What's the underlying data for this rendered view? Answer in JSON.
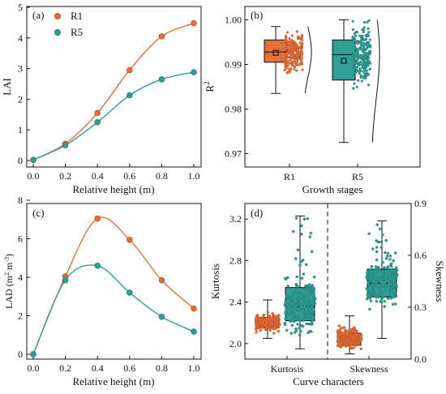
{
  "colors": {
    "r1": "#e2703a",
    "r5": "#2f9e96",
    "r1_dark": "#b04a22",
    "r5_dark": "#1f6e68",
    "axis": "#111111"
  },
  "chart_data": [
    {
      "panel": "(a)",
      "type": "line",
      "xlabel": "Relative height (m)",
      "ylabel": "LAI",
      "xlim": [
        0,
        1.0
      ],
      "ylim": [
        0,
        5
      ],
      "xticks": [
        "0.0",
        "0.2",
        "0.4",
        "0.6",
        "0.8",
        "1.0"
      ],
      "yticks": [
        "0",
        "1",
        "2",
        "3",
        "4",
        "5"
      ],
      "legend": [
        "R1",
        "R5"
      ],
      "series": [
        {
          "name": "R1",
          "x": [
            0,
            0.2,
            0.4,
            0.6,
            0.8,
            1.0
          ],
          "y": [
            0.02,
            0.55,
            1.55,
            2.95,
            4.05,
            4.48
          ]
        },
        {
          "name": "R5",
          "x": [
            0,
            0.2,
            0.4,
            0.6,
            0.8,
            1.0
          ],
          "y": [
            0.02,
            0.5,
            1.25,
            2.13,
            2.65,
            2.88
          ]
        }
      ]
    },
    {
      "panel": "(b)",
      "type": "box",
      "xlabel": "Growth stages",
      "ylabel": "R²",
      "categories": [
        "R1",
        "R5"
      ],
      "ylim": [
        0.967,
        1.003
      ],
      "yticks": [
        "0.97",
        "0.98",
        "0.99",
        "1.00"
      ],
      "boxes": [
        {
          "name": "R1",
          "whisker_low": 0.9835,
          "q1": 0.9905,
          "median": 0.9928,
          "q3": 0.9955,
          "whisker_high": 0.9985,
          "mean": 0.9926
        },
        {
          "name": "R5",
          "whisker_low": 0.9725,
          "q1": 0.9865,
          "median": 0.9922,
          "q3": 0.9955,
          "whisker_high": 1.0,
          "mean": 0.9908
        }
      ]
    },
    {
      "panel": "(c)",
      "type": "line",
      "xlabel": "Relative height (m)",
      "ylabel": "LAD (m² m⁻³)",
      "xlim": [
        0,
        1.0
      ],
      "ylim": [
        0,
        8
      ],
      "xticks": [
        "0.0",
        "0.2",
        "0.4",
        "0.6",
        "0.8",
        "1.0"
      ],
      "yticks": [
        "0",
        "2",
        "4",
        "6",
        "8"
      ],
      "series": [
        {
          "name": "R1",
          "x": [
            0,
            0.2,
            0.4,
            0.6,
            0.8,
            1.0
          ],
          "y": [
            0,
            4.05,
            7.05,
            5.95,
            3.85,
            2.38
          ]
        },
        {
          "name": "R5",
          "x": [
            0,
            0.2,
            0.4,
            0.6,
            0.8,
            1.0
          ],
          "y": [
            0,
            3.85,
            4.6,
            3.2,
            1.95,
            1.18
          ]
        }
      ]
    },
    {
      "panel": "(d)",
      "type": "box",
      "xlabel": "Curve characters",
      "ylabel": "Kurtosis",
      "ylabel_right": "Skewness",
      "categories": [
        "Kurtosis",
        "Skewness"
      ],
      "ylim_left": [
        1.85,
        3.35
      ],
      "yticks_left": [
        "2.0",
        "2.4",
        "2.8",
        "3.2"
      ],
      "ylim_right": [
        0,
        0.9
      ],
      "yticks_right": [
        "0.0",
        "0.3",
        "0.6",
        "0.9"
      ],
      "boxes": [
        {
          "group": "Kurtosis",
          "name": "R1",
          "axis": "left",
          "whisker_low": 2.05,
          "q1": 2.15,
          "median": 2.2,
          "q3": 2.25,
          "whisker_high": 2.42
        },
        {
          "group": "Kurtosis",
          "name": "R5",
          "axis": "left",
          "whisker_low": 1.95,
          "q1": 2.22,
          "median": 2.36,
          "q3": 2.54,
          "whisker_high": 3.23
        },
        {
          "group": "Skewness",
          "name": "R1",
          "axis": "right",
          "whisker_low": 0.03,
          "q1": 0.08,
          "median": 0.12,
          "q3": 0.15,
          "whisker_high": 0.25
        },
        {
          "group": "Skewness",
          "name": "R5",
          "axis": "right",
          "whisker_low": 0.12,
          "q1": 0.36,
          "median": 0.44,
          "q3": 0.52,
          "whisker_high": 0.8
        }
      ]
    }
  ]
}
